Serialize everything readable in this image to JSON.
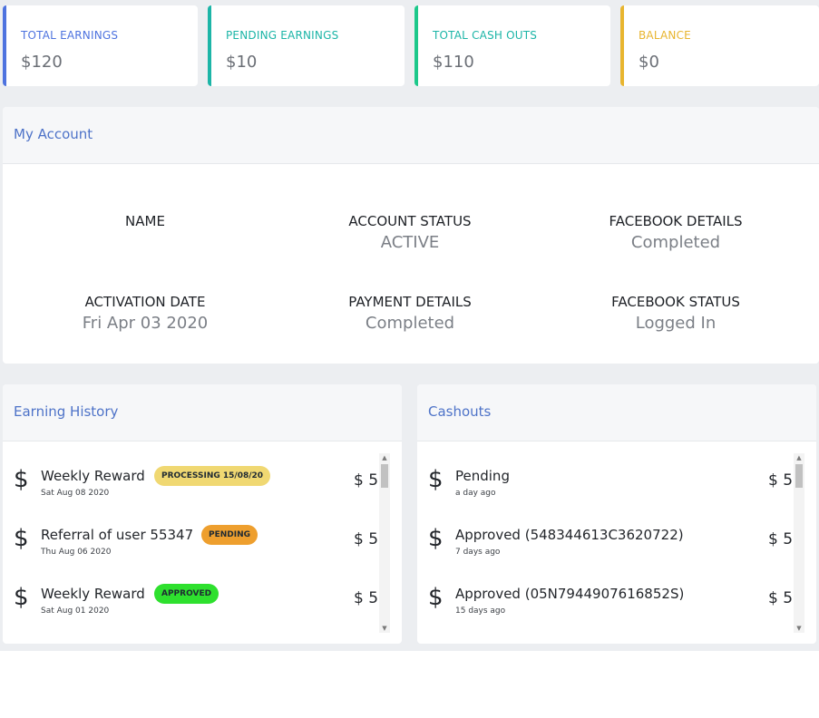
{
  "stats": [
    {
      "label": "TOTAL EARNINGS",
      "value": "$120",
      "color": "#4e73df"
    },
    {
      "label": "PENDING EARNINGS",
      "value": "$10",
      "color": "#1cb5a7"
    },
    {
      "label": "TOTAL CASH OUTS",
      "value": "$110",
      "color": "#1cc88a"
    },
    {
      "label": "BALANCE",
      "value": "$0",
      "color": "#e8b52f"
    }
  ],
  "account": {
    "title": "My Account",
    "name_label": "NAME",
    "name_value": "",
    "status_label": "ACCOUNT STATUS",
    "status_value": "ACTIVE",
    "facebook_details_label": "FACEBOOK DETAILS",
    "facebook_details_value": "Completed",
    "activation_label": "ACTIVATION DATE",
    "activation_value": "Fri Apr 03 2020",
    "payment_label": "PAYMENT DETAILS",
    "payment_value": "Completed",
    "facebook_status_label": "FACEBOOK STATUS",
    "facebook_status_value": "Logged In"
  },
  "earning_history": {
    "title": "Earning History",
    "items": [
      {
        "title": "Weekly Reward",
        "date": "Sat Aug 08 2020",
        "badge": "PROCESSING 15/08/20",
        "badge_color": "#f0d872",
        "amount": "$ 5"
      },
      {
        "title": "Referral of user 55347",
        "date": "Thu Aug 06 2020",
        "badge": "PENDING",
        "badge_color": "#ee9f2e",
        "amount": "$ 5"
      },
      {
        "title": "Weekly Reward",
        "date": "Sat Aug 01 2020",
        "badge": "APPROVED",
        "badge_color": "#2ee02e",
        "amount": "$ 5"
      }
    ]
  },
  "cashouts": {
    "title": "Cashouts",
    "items": [
      {
        "title": "Pending",
        "date": "a day ago",
        "amount": "$ 5"
      },
      {
        "title": "Approved (548344613C3620722)",
        "date": "7 days ago",
        "amount": "$ 5"
      },
      {
        "title": "Approved (05N7944907616852S)",
        "date": "15 days ago",
        "amount": "$ 5"
      }
    ]
  },
  "icons": {
    "currency": "$",
    "scroll_up": "▲",
    "scroll_down": "▼"
  }
}
